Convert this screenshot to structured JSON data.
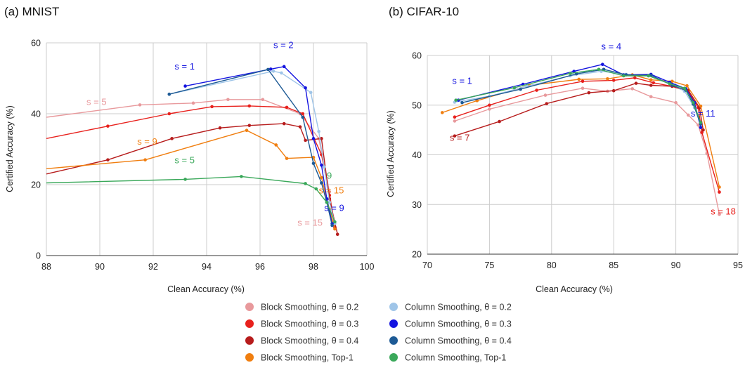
{
  "colors": {
    "block_0.2": "#e8999c",
    "block_0.3": "#e8211d",
    "block_0.4": "#b71c1c",
    "block_top1": "#f07e0f",
    "col_0.2": "#9fc5e8",
    "col_0.3": "#1414e0",
    "col_0.4": "#1d5a95",
    "col_top1": "#3aa85a"
  },
  "legend": [
    {
      "label": "Block Smoothing, θ = 0.2",
      "key": "block_0.2"
    },
    {
      "label": "Column Smoothing, θ = 0.2",
      "key": "col_0.2"
    },
    {
      "label": "Block Smoothing, θ = 0.3",
      "key": "block_0.3"
    },
    {
      "label": "Column Smoothing, θ = 0.3",
      "key": "col_0.3"
    },
    {
      "label": "Block Smoothing, θ = 0.4",
      "key": "block_0.4"
    },
    {
      "label": "Column Smoothing, θ = 0.4",
      "key": "col_0.4"
    },
    {
      "label": "Block Smoothing, Top-1",
      "key": "block_top1"
    },
    {
      "label": "Column Smoothing, Top-1",
      "key": "col_top1"
    }
  ],
  "chart_data": [
    {
      "type": "line",
      "title": "(a) MNIST",
      "xlabel": "Clean Accuracy (%)",
      "ylabel": "Certified Accuracy (%)",
      "xlim": [
        88,
        100
      ],
      "ylim": [
        0,
        60
      ],
      "xticks": [
        88,
        90,
        92,
        94,
        96,
        98,
        100
      ],
      "yticks": [
        0,
        20,
        40,
        60
      ],
      "grid": true,
      "annotations": [
        {
          "text": "s = 5",
          "x": 89.5,
          "y": 42.5,
          "key": "block_0.2"
        },
        {
          "text": "s = 9",
          "x": 91.4,
          "y": 31.3,
          "key": "block_top1"
        },
        {
          "text": "s = 5",
          "x": 92.8,
          "y": 26.0,
          "key": "col_top1"
        },
        {
          "text": "s = 1",
          "x": 92.8,
          "y": 52.5,
          "key": "col_0.3"
        },
        {
          "text": "s = 2",
          "x": 96.5,
          "y": 58.5,
          "key": "col_0.3"
        },
        {
          "text": "9",
          "x": 98.5,
          "y": 21.7,
          "key": "col_top1"
        },
        {
          "text": "s = 15",
          "x": 98.2,
          "y": 17.5,
          "key": "block_top1"
        },
        {
          "text": "s = 9",
          "x": 98.4,
          "y": 12.6,
          "key": "col_0.3"
        },
        {
          "text": "s = 15",
          "x": 97.4,
          "y": 8.4,
          "key": "block_0.2"
        }
      ],
      "series": [
        {
          "key": "block_0.2",
          "x": [
            88,
            91.5,
            93.5,
            94.8,
            96.1,
            97.5,
            98.2,
            98.6,
            98.8
          ],
          "y": [
            39,
            42.5,
            43,
            44,
            44,
            40,
            33,
            18,
            8
          ]
        },
        {
          "key": "block_0.3",
          "x": [
            88,
            90.3,
            92.6,
            94.2,
            95.6,
            97.0,
            97.6,
            98.3,
            98.6,
            98.8
          ],
          "y": [
            33,
            36.5,
            40,
            42,
            42.2,
            41.8,
            40,
            28.5,
            17,
            8
          ]
        },
        {
          "key": "block_0.4",
          "x": [
            88,
            90.3,
            92.7,
            94.5,
            95.6,
            96.9,
            97.5,
            97.7,
            98.3,
            98.6,
            98.9
          ],
          "y": [
            23,
            27,
            33,
            36,
            36.7,
            37.2,
            36.3,
            32.5,
            33,
            16,
            6
          ]
        },
        {
          "key": "block_top1",
          "x": [
            88,
            91.7,
            95.5,
            96.6,
            97.0,
            98.0,
            98.3,
            98.6,
            98.8
          ],
          "y": [
            24.5,
            27,
            35.3,
            31.2,
            27.4,
            27.7,
            22,
            13,
            7.5
          ]
        },
        {
          "key": "col_0.2",
          "x": [
            92.6,
            96.5,
            96.8,
            97.9,
            98.2,
            98.4,
            98.6,
            98.8
          ],
          "y": [
            45.5,
            52,
            51.5,
            46,
            35,
            25,
            15,
            9
          ]
        },
        {
          "key": "col_0.3",
          "x": [
            93.2,
            96.4,
            96.9,
            97.7,
            98.0,
            98.3,
            98.5,
            98.7
          ],
          "y": [
            47.8,
            52.6,
            53.3,
            47.3,
            33,
            25.5,
            16,
            9
          ]
        },
        {
          "key": "col_0.4",
          "x": [
            92.6,
            96.3,
            97.6,
            98.0,
            98.3,
            98.5,
            98.7
          ],
          "y": [
            45.5,
            52.5,
            39,
            26,
            20.5,
            15,
            8.5
          ]
        },
        {
          "key": "col_top1",
          "x": [
            88,
            93.2,
            95.3,
            97.7,
            98.1,
            98.5,
            98.8
          ],
          "y": [
            20.5,
            21.5,
            22.3,
            20.3,
            18.8,
            15,
            9.5
          ]
        }
      ]
    },
    {
      "type": "line",
      "title": "(b) CIFAR-10",
      "xlabel": "Clean Accuracy (%)",
      "ylabel": "Certified Accuracy (%)",
      "xlim": [
        70,
        95
      ],
      "ylim": [
        20,
        60
      ],
      "xticks": [
        70,
        75,
        80,
        85,
        90,
        95
      ],
      "yticks": [
        20,
        30,
        40,
        50,
        60
      ],
      "grid": true,
      "annotations": [
        {
          "text": "s = 1",
          "x": 72.0,
          "y": 54.3,
          "key": "col_0.3"
        },
        {
          "text": "s = 4",
          "x": 84.0,
          "y": 61.2,
          "key": "col_0.3"
        },
        {
          "text": "s = 11",
          "x": 91.2,
          "y": 47.7,
          "key": "col_0.3"
        },
        {
          "text": "s = 7",
          "x": 71.8,
          "y": 42.8,
          "key": "block_0.4"
        },
        {
          "text": "s = 18",
          "x": 92.8,
          "y": 28.0,
          "key": "block_0.3"
        }
      ],
      "series": [
        {
          "key": "block_0.2",
          "x": [
            72.2,
            75.0,
            79.5,
            82.5,
            84.5,
            86.5,
            88.0,
            90.0,
            91.0,
            91.8,
            92.5,
            93.5
          ],
          "y": [
            46.8,
            49.2,
            52,
            53.4,
            52.8,
            53.3,
            51.7,
            50.5,
            48,
            46,
            40.3,
            28
          ]
        },
        {
          "key": "block_0.3",
          "x": [
            72.2,
            75.0,
            78.8,
            82.5,
            85.0,
            86.7,
            88.2,
            89.7,
            91.0,
            91.8,
            92.1,
            93.5
          ],
          "y": [
            47.6,
            50,
            53,
            54.8,
            55,
            55.5,
            54.5,
            53.8,
            52.7,
            49.5,
            44.5,
            32.5
          ]
        },
        {
          "key": "block_0.4",
          "x": [
            72.2,
            75.8,
            79.6,
            83.0,
            85.0,
            86.8,
            88.0,
            89.7,
            91.0,
            91.9,
            92.2
          ],
          "y": [
            43.8,
            46.7,
            50.3,
            52.5,
            52.9,
            54.4,
            54,
            53.8,
            53,
            49.5,
            45
          ]
        },
        {
          "key": "block_top1",
          "x": [
            71.2,
            74.0,
            78.2,
            82.2,
            84.5,
            86.5,
            88.0,
            89.7,
            90.9,
            92.0,
            93.5
          ],
          "y": [
            48.5,
            50.9,
            54,
            55.2,
            55.3,
            56.1,
            55.1,
            54.8,
            53.9,
            49.8,
            33.5
          ]
        },
        {
          "key": "col_0.2",
          "x": [
            72.2,
            75.0,
            78.0,
            81.5,
            84.0,
            86.0,
            87.8,
            89.5,
            90.7,
            91.5,
            92.0
          ],
          "y": [
            50.6,
            51.8,
            53.8,
            55.9,
            56.8,
            56.2,
            55.9,
            54.4,
            52.8,
            49.5,
            46
          ]
        },
        {
          "key": "col_0.3",
          "x": [
            72.5,
            77.7,
            81.8,
            84.1,
            85.8,
            88.0,
            89.5,
            90.8,
            91.5,
            92.0
          ],
          "y": [
            51,
            54.2,
            56.8,
            58.2,
            56.1,
            56.2,
            54.6,
            53.3,
            50.5,
            45.5
          ]
        },
        {
          "key": "col_0.4",
          "x": [
            72.8,
            77.5,
            82.0,
            84.2,
            86.0,
            88.0,
            89.7,
            90.8,
            91.4,
            92.0
          ],
          "y": [
            50.5,
            53.2,
            56.3,
            57.2,
            56.1,
            56,
            54,
            53,
            50.2,
            46.2
          ]
        },
        {
          "key": "col_top1",
          "x": [
            72.3,
            77.0,
            81.5,
            83.8,
            85.8,
            87.8,
            89.5,
            90.7,
            91.4,
            92.0
          ],
          "y": [
            51,
            53.5,
            56.4,
            57.2,
            55.9,
            55.9,
            54.3,
            53.4,
            50.5,
            46.5
          ]
        }
      ]
    }
  ]
}
